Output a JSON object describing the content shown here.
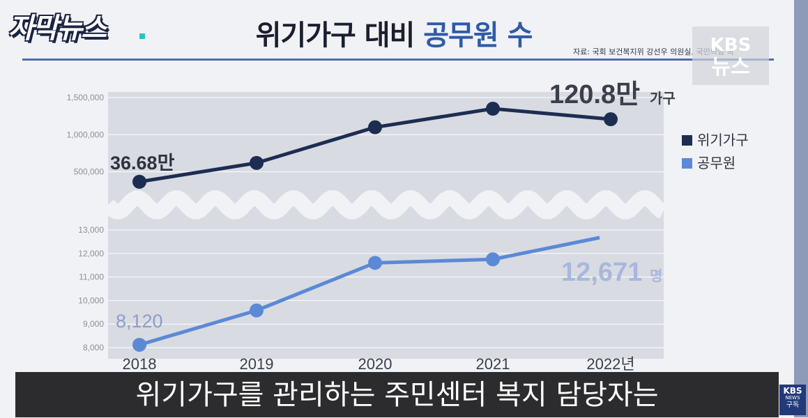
{
  "header": {
    "program_logo": "자막뉴스",
    "title_prefix": "위기가구 대비 ",
    "title_accent": "공무원 수",
    "source": "자료: 국회 보건복지위 강선우 의원실, 국민의힘 복",
    "watermark_line1": "KBS",
    "watermark_line2": "뉴스"
  },
  "subtitle": "위기가구를 관리하는 주민센터 복지 담당자는",
  "corner_logo": {
    "line1": "KBS",
    "line2": "NEWS",
    "line3": "구독"
  },
  "colors": {
    "household": "#1d2d52",
    "officials": "#5b89d6",
    "plot_bg": "#d8dbe2",
    "accent": "#2e5aa8"
  },
  "chart_data": {
    "type": "line",
    "x": [
      "2018",
      "2019",
      "2020",
      "2021",
      "2022년"
    ],
    "legend": [
      {
        "name": "위기가구",
        "color": "#1d2d52"
      },
      {
        "name": "공무원",
        "color": "#5b89d6"
      }
    ],
    "series": [
      {
        "name": "위기가구",
        "values": [
          366800,
          620000,
          1100000,
          1350000,
          1208000
        ],
        "ylim": [
          0,
          1500000
        ],
        "yticks": [
          "500,000",
          "1,000,000",
          "1,500,000"
        ],
        "start_label": "36.68만",
        "end_label": "120.8만",
        "end_unit": "가구"
      },
      {
        "name": "공무원",
        "values": [
          8120,
          9580,
          11600,
          11750,
          12671
        ],
        "ylim": [
          8000,
          13000
        ],
        "yticks": [
          "8,000",
          "9,000",
          "10,000",
          "11,000",
          "12,000",
          "13,000"
        ],
        "start_label": "8,120",
        "end_label": "12,671",
        "end_unit": "명"
      }
    ],
    "axis_break": true
  }
}
